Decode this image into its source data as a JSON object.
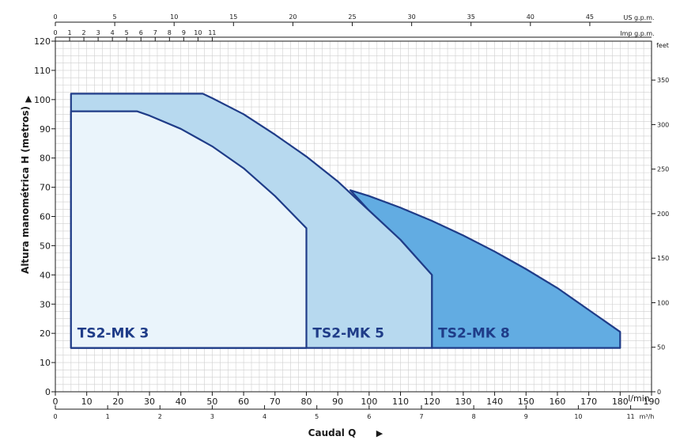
{
  "chart_data": {
    "type": "area",
    "title": "",
    "ylabel": "Altura manométrica H (metros)",
    "xlabel": "Caudal Q",
    "x_unit": "l/min",
    "xlim": [
      0,
      190
    ],
    "ylim": [
      0,
      120
    ],
    "x_ticks": [
      0,
      10,
      20,
      30,
      40,
      50,
      60,
      70,
      80,
      90,
      100,
      110,
      120,
      130,
      140,
      150,
      160,
      170,
      180,
      190
    ],
    "y_ticks": [
      0,
      10,
      20,
      30,
      40,
      50,
      60,
      70,
      80,
      90,
      100,
      110,
      120
    ],
    "grid": true,
    "secondary_axes": {
      "top_us": {
        "unit": "US g.p.m.",
        "ticks": [
          0,
          5,
          10,
          15,
          20,
          25,
          30,
          35,
          40,
          45
        ]
      },
      "top_imp": {
        "unit": "Imp g.p.m.",
        "ticks": [
          0,
          1,
          2,
          3,
          4,
          5,
          6,
          7,
          8,
          9,
          10,
          11
        ]
      },
      "right_feet": {
        "unit": "feet",
        "ticks": [
          0,
          50,
          100,
          150,
          200,
          250,
          300,
          350
        ]
      },
      "bottom_m3h": {
        "unit": "m³/h",
        "ticks": [
          0,
          1,
          2,
          3,
          4,
          5,
          6,
          7,
          8,
          9,
          10,
          11
        ]
      }
    },
    "series": [
      {
        "name": "TS2-MK 8",
        "color": "#62ace2",
        "points": [
          [
            94,
            69
          ],
          [
            100,
            67
          ],
          [
            110,
            63
          ],
          [
            120,
            58.5
          ],
          [
            130,
            53.5
          ],
          [
            140,
            48
          ],
          [
            150,
            42
          ],
          [
            160,
            35.5
          ],
          [
            170,
            28
          ],
          [
            180,
            20.5
          ],
          [
            180,
            15
          ],
          [
            120,
            15
          ],
          [
            120,
            40
          ],
          [
            110,
            52
          ],
          [
            100,
            62
          ],
          [
            94,
            69
          ]
        ]
      },
      {
        "name": "TS2-MK 5",
        "color": "#b7d9ef",
        "points": [
          [
            5,
            102
          ],
          [
            47,
            102
          ],
          [
            50,
            100.5
          ],
          [
            60,
            95
          ],
          [
            70,
            88
          ],
          [
            80,
            80.5
          ],
          [
            90,
            72
          ],
          [
            100,
            62
          ],
          [
            110,
            52
          ],
          [
            120,
            40
          ],
          [
            120,
            15
          ],
          [
            5,
            15
          ],
          [
            5,
            102
          ]
        ]
      },
      {
        "name": "TS2-MK 3",
        "color": "#eaf4fb",
        "points": [
          [
            5,
            96
          ],
          [
            26,
            96
          ],
          [
            30,
            94.5
          ],
          [
            40,
            90
          ],
          [
            50,
            84
          ],
          [
            60,
            76.5
          ],
          [
            70,
            67
          ],
          [
            80,
            56
          ],
          [
            80,
            15
          ],
          [
            5,
            15
          ],
          [
            5,
            96
          ]
        ]
      }
    ],
    "labels": [
      {
        "text": "TS2-MK 3",
        "x": 7,
        "y": 18.5
      },
      {
        "text": "TS2-MK 5",
        "x": 82,
        "y": 18.5
      },
      {
        "text": "TS2-MK 8",
        "x": 122,
        "y": 18.5
      }
    ]
  }
}
